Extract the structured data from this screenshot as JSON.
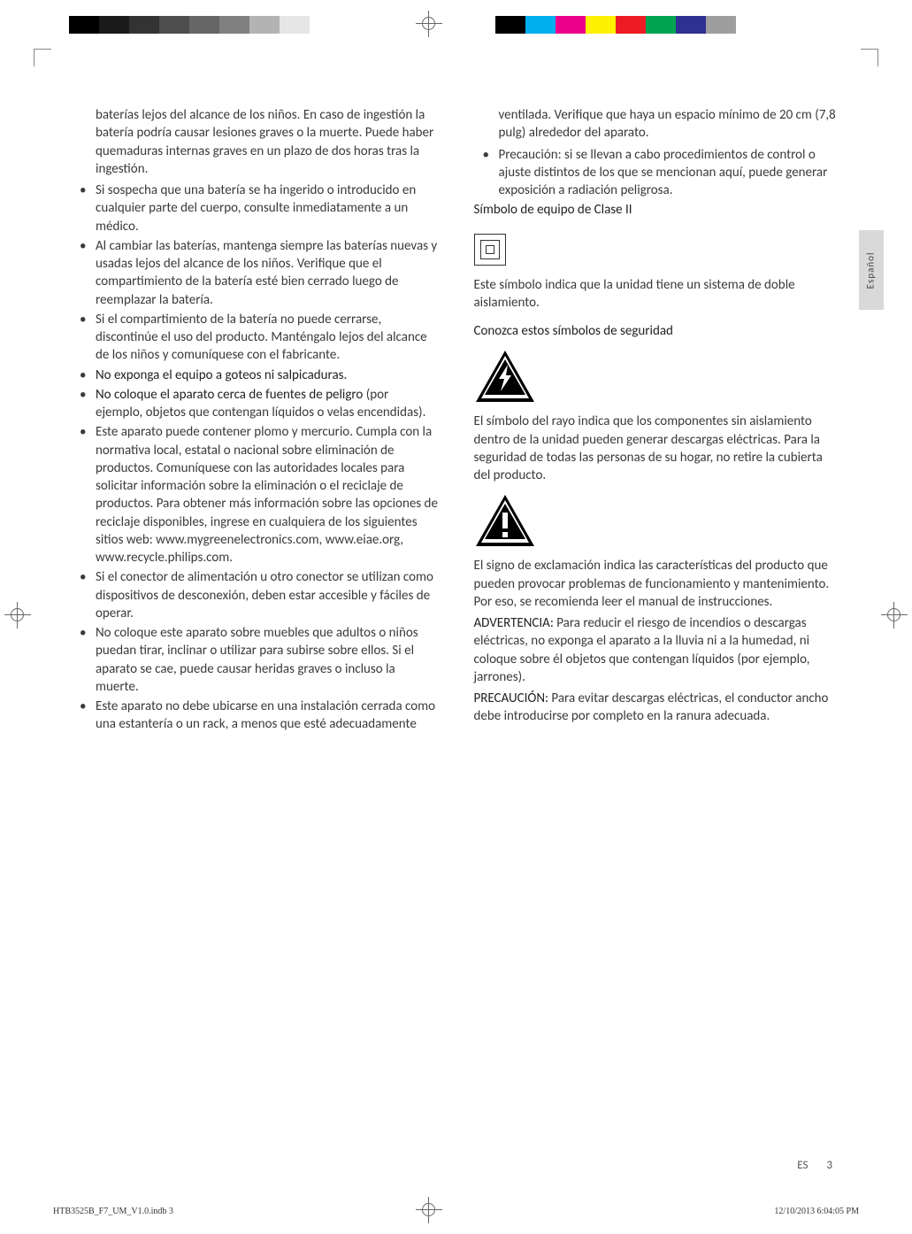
{
  "print_marks": {
    "gray_shades": [
      "#000000",
      "#1a1a1a",
      "#333333",
      "#4d4d4d",
      "#666666",
      "#808080",
      "#b3b3b3",
      "#e6e6e6"
    ],
    "color_swatches": [
      "#000000",
      "#00adee",
      "#ec008b",
      "#fff100",
      "#ed1b24",
      "#00a551",
      "#2e3092",
      "#9e9e9e"
    ]
  },
  "side_tab": "Español",
  "left": {
    "intro": "baterías lejos del alcance de los niños. En caso de ingestión la batería podría causar lesiones graves o la muerte. Puede haber quemaduras internas graves en un plazo de dos horas tras la ingestión.",
    "items": [
      "Si sospecha que una batería se ha ingerido o introducido en cualquier parte del cuerpo, consulte inmediatamente a un médico.",
      "Al cambiar las baterías, mantenga siempre las baterías nuevas y usadas lejos del alcance de los niños. Verifique que el compartimiento de la batería esté bien cerrado luego de reemplazar la batería.",
      "Si el compartimiento de la batería no puede cerrarse, discontinúe el uso del producto. Manténgalo lejos del alcance de los niños y comuníquese con el fabricante."
    ],
    "item_bold_nogoteo": "No exponga el equipo a goteos ni salpicaduras.",
    "item_nocoloque_pre": "No coloque el aparato cerca de fuentes de peligro",
    "item_nocoloque_post": " (por ejemplo, objetos que contengan líquidos o velas encendidas).",
    "item_plomo": "Este aparato puede contener plomo y mercurio. Cumpla con la normativa local, estatal o nacional sobre eliminación de productos. Comuníquese con las autoridades locales para solicitar información sobre la eliminación o el reciclaje de productos. Para obtener más información sobre las opciones de reciclaje disponibles, ingrese en cualquiera de los siguientes sitios web: www.mygreenelectronics.com, www.eiae.org, www.recycle.philips.com.",
    "items2": [
      "Si el conector de alimentación u otro conector se utilizan como dispositivos de desconexión, deben estar accesible y fáciles de operar.",
      "No coloque este aparato sobre muebles que adultos o niños puedan tirar, inclinar o utilizar para subirse sobre ellos. Si el aparato se cae, puede causar heridas graves o incluso la muerte.",
      "Este aparato no debe ubicarse en una instalación cerrada como una estantería o un rack, a menos que esté adecuadamente"
    ]
  },
  "right": {
    "cont": "ventilada. Verifique que haya un espacio mínimo de 20 cm (7,8 pulg) alrededor del aparato.",
    "precaucion": "Precaución: si se llevan a cabo procedimientos de control o ajuste distintos de los que se mencionan aquí, puede generar exposición a radiación peligrosa.",
    "class2_heading": "Símbolo de equipo de Clase II",
    "class2_text": "Este símbolo indica que la unidad tiene un sistema de doble aislamiento.",
    "conozca_heading": "Conozca estos símbolos de seguridad",
    "rayo_text": "El símbolo del rayo indica que los componentes sin aislamiento dentro de la unidad pueden generar descargas eléctricas. Para la seguridad de todas las personas de su hogar, no retire la cubierta del producto.",
    "exclam_text": "El signo de exclamación indica las características del producto que pueden provocar problemas de funcionamiento y mantenimiento. Por eso, se recomienda leer el manual de instrucciones.",
    "advert_label": "ADVERTENCIA:",
    "advert_text": " Para reducir el riesgo de incendios o descargas eléctricas, no exponga el aparato a la lluvia ni a la humedad, ni coloque sobre él objetos que contengan líquidos (por ejemplo, jarrones).",
    "precauc_label": "PRECAUCIÓN:",
    "precauc_text": " Para evitar descargas eléctricas, el conductor ancho debe introducirse por completo en la ranura adecuada."
  },
  "footer": {
    "lang": "ES",
    "page": "3"
  },
  "print_footer": {
    "left": "HTB3525B_F7_UM_V1.0.indb   3",
    "right": "12/10/2013   6:04:05 PM"
  }
}
